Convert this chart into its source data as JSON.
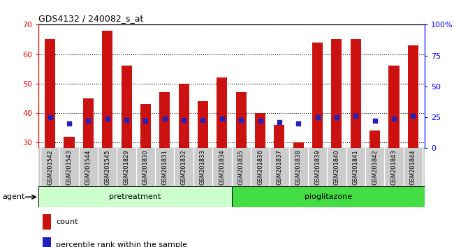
{
  "title": "GDS4132 / 240082_s_at",
  "samples": [
    "GSM201542",
    "GSM201543",
    "GSM201544",
    "GSM201545",
    "GSM201829",
    "GSM201830",
    "GSM201831",
    "GSM201832",
    "GSM201833",
    "GSM201834",
    "GSM201835",
    "GSM201836",
    "GSM201837",
    "GSM201838",
    "GSM201839",
    "GSM201840",
    "GSM201841",
    "GSM201842",
    "GSM201843",
    "GSM201844"
  ],
  "counts": [
    65,
    32,
    45,
    68,
    56,
    43,
    47,
    50,
    44,
    52,
    47,
    40,
    36,
    30,
    64,
    65,
    65,
    34,
    56,
    63
  ],
  "percentiles": [
    25,
    20,
    22,
    24,
    23,
    22,
    24,
    23,
    23,
    24,
    23,
    22,
    21,
    20,
    25,
    25,
    26,
    22,
    24,
    26
  ],
  "ylim_left": [
    28,
    70
  ],
  "ylim_right": [
    0,
    100
  ],
  "yticks_left": [
    30,
    40,
    50,
    60,
    70
  ],
  "yticks_right": [
    0,
    25,
    50,
    75,
    100
  ],
  "ytick_labels_right": [
    "0",
    "25",
    "50",
    "75",
    "100%"
  ],
  "bar_color": "#cc1111",
  "dot_color": "#2222bb",
  "plot_bg_color": "#ffffff",
  "xtick_bg_color": "#cccccc",
  "pretreatment_color": "#ccffcc",
  "pioglitazone_color": "#44dd44",
  "agent_label": "agent",
  "pretreatment_label": "pretreatment",
  "pioglitazone_label": "pioglitazone",
  "legend_count": "count",
  "legend_percentile": "percentile rank within the sample",
  "bar_width": 0.55,
  "n_pretreatment": 10,
  "n_pioglitazone": 10
}
